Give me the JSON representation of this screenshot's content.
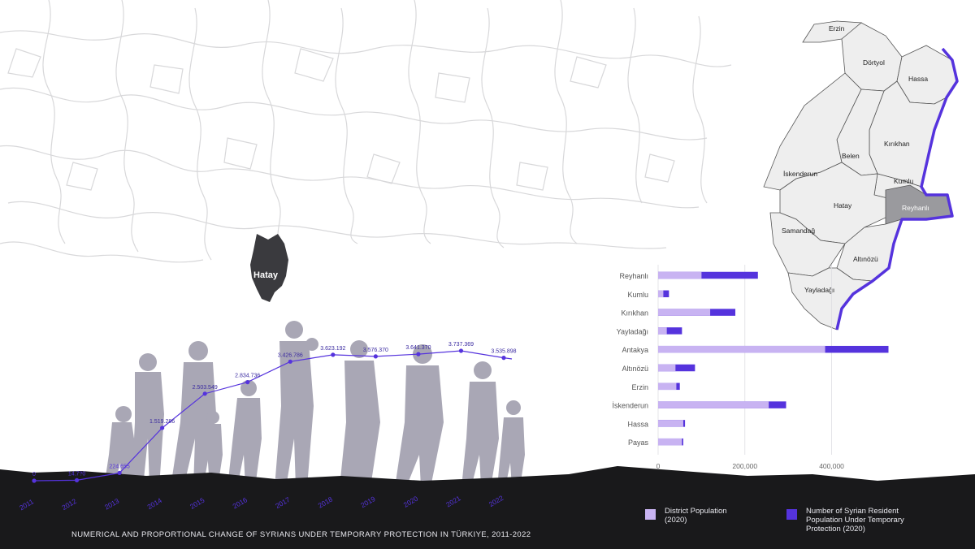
{
  "map": {
    "province_label": "Hatay",
    "districts": [
      {
        "name": "Erzin"
      },
      {
        "name": "Dörtyol"
      },
      {
        "name": "Hassa"
      },
      {
        "name": "Kırıkhan"
      },
      {
        "name": "Belen"
      },
      {
        "name": "İskenderun"
      },
      {
        "name": "Kumlu"
      },
      {
        "name": "Hatay"
      },
      {
        "name": "Reyhanlı"
      },
      {
        "name": "Samandağ"
      },
      {
        "name": "Altınözü"
      },
      {
        "name": "Yayladağı"
      }
    ],
    "colors": {
      "district_fill": "#eeeeee",
      "highlight_fill": "#9a9a9e",
      "border": "#5533dd",
      "province_fill": "#3a3a3e"
    }
  },
  "line_chart": {
    "type": "line",
    "x": [
      "2011",
      "2012",
      "2013",
      "2014",
      "2015",
      "2016",
      "2017",
      "2018",
      "2019",
      "2020",
      "2021",
      "2022"
    ],
    "y": [
      0,
      14700,
      224655,
      1519286,
      2503549,
      2834736,
      3426786,
      3623192,
      3576370,
      3641370,
      3737369,
      3535898
    ],
    "labels": [
      "0",
      "14.7?0",
      "224.655",
      "1.519.286",
      "2.503.549",
      "2.834.736",
      "3.426.786",
      "3.623.192",
      "3.576.370",
      "3.641.370",
      "3.737.369",
      "3.535.898"
    ],
    "caption": "NUMERICAL AND PROPORTIONAL CHANGE OF SYRIANS UNDER TEMPORARY PROTECTION IN TÜRKIYE, 2011-2022",
    "color": "#5533dd"
  },
  "chart_data": {
    "type": "bar",
    "categories": [
      "Reyhanlı",
      "Kumlu",
      "Kırıkhan",
      "Yayladağı",
      "Antakya",
      "Altınözü",
      "Erzin",
      "İskenderun",
      "Hassa",
      "Payas"
    ],
    "series": [
      {
        "name": "District Population (2020)",
        "values": [
          100000,
          12000,
          120000,
          20000,
          385000,
          40000,
          42000,
          255000,
          58000,
          55000
        ]
      },
      {
        "name": "Number of Syrian Resident Population Under Temporary Protection (2020)",
        "values": [
          230000,
          25000,
          178000,
          55000,
          531000,
          85000,
          50000,
          295000,
          62000,
          58000
        ]
      }
    ],
    "xticks": [
      "0",
      "200,000",
      "400,000"
    ],
    "xtick_values": [
      0,
      200000,
      400000
    ],
    "xlim": [
      0,
      590000
    ],
    "grid": true,
    "legend_position": "bottom",
    "colors": {
      "district": "#c8b3f2",
      "syrian": "#5533dd"
    }
  },
  "legend": {
    "district_label": "District Population\n(2020)",
    "syrian_label": "Number of Syrian Resident\nPopulation Under Temporary\nProtection (2020)"
  }
}
